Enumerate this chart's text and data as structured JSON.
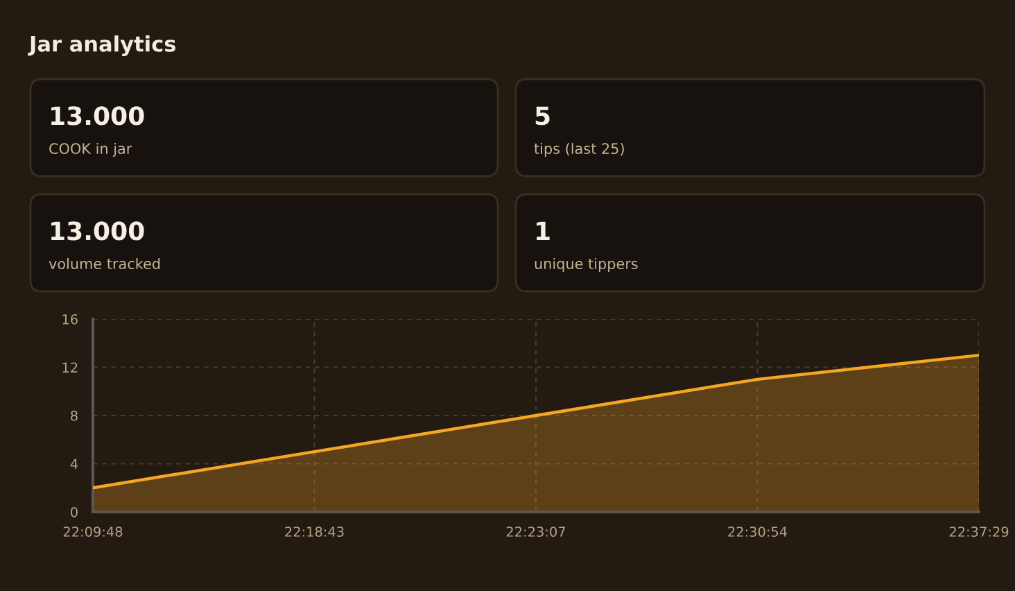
{
  "chart_data": [
    {
      "type": "other",
      "title": "Jar analytics",
      "annotations": [
        "13.000",
        "COOK in jar",
        "5",
        "tips (last 25)",
        "13.000",
        "volume tracked",
        "1",
        "unique tippers"
      ]
    },
    {
      "type": "area",
      "categories": [
        "22:09:48",
        "22:18:43",
        "22:23:07",
        "22:30:54",
        "22:37:29"
      ],
      "series": [
        {
          "color": "#f5a623",
          "values": [
            2,
            5,
            8,
            11,
            13
          ]
        }
      ],
      "ylim": [
        0,
        16
      ],
      "yticks": [
        0,
        4,
        8,
        12,
        16
      ],
      "grid": true,
      "marker": "none",
      "line_style": "solid"
    }
  ]
}
